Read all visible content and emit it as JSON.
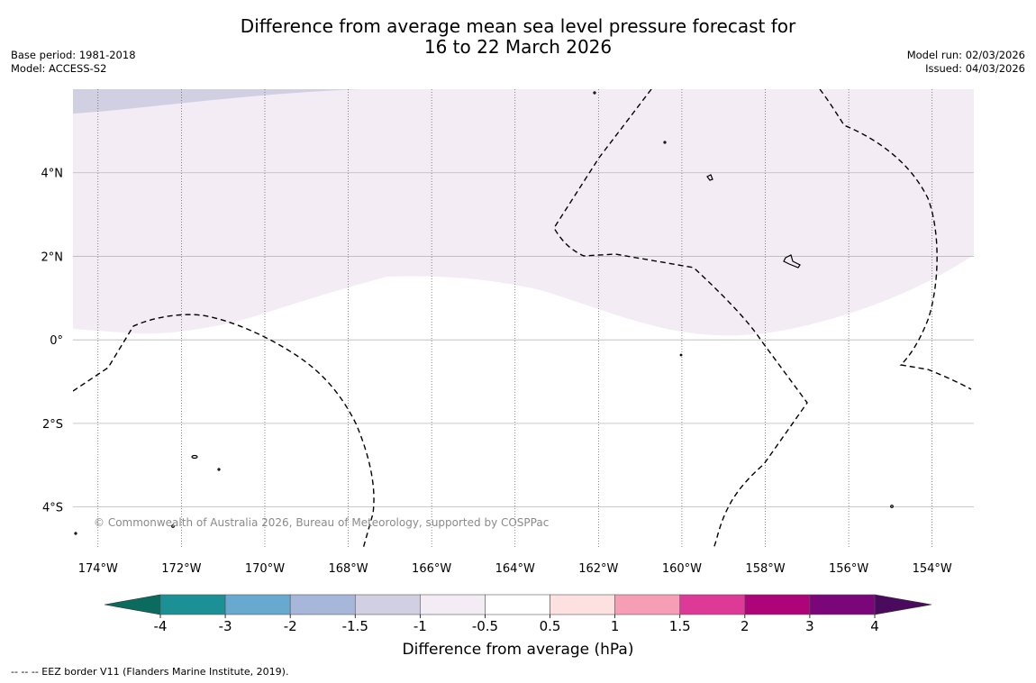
{
  "title": {
    "line1": "Difference from average mean sea level pressure forecast for",
    "line2": "16 to 22 March 2026"
  },
  "meta_left": {
    "base_period": "Base period: 1981-2018",
    "model": "Model: ACCESS-S2"
  },
  "meta_right": {
    "model_run": "Model run: 02/03/2026",
    "issued": "Issued: 04/03/2026"
  },
  "map": {
    "lon_range": [
      -174.6,
      -153.0
    ],
    "lat_range": [
      -5.0,
      6.0
    ],
    "lon_ticks": [
      {
        "value": -174,
        "label": "174°W"
      },
      {
        "value": -172,
        "label": "172°W"
      },
      {
        "value": -170,
        "label": "170°W"
      },
      {
        "value": -168,
        "label": "168°W"
      },
      {
        "value": -166,
        "label": "166°W"
      },
      {
        "value": -164,
        "label": "164°W"
      },
      {
        "value": -162,
        "label": "162°W"
      },
      {
        "value": -160,
        "label": "160°W"
      },
      {
        "value": -158,
        "label": "158°W"
      },
      {
        "value": -156,
        "label": "156°W"
      },
      {
        "value": -154,
        "label": "154°W"
      }
    ],
    "lat_ticks": [
      {
        "value": 4,
        "label": "4°N"
      },
      {
        "value": 2,
        "label": "2°N"
      },
      {
        "value": 0,
        "label": "0°"
      },
      {
        "value": -2,
        "label": "2°S"
      },
      {
        "value": -4,
        "label": "4°S"
      }
    ],
    "copyright": "© Commonwealth of Australia 2026, Bureau of Meteorology, supported by COSPPac",
    "shading_colors": {
      "band_minus_1_5_to_minus_1": "#d1d0e3",
      "band_minus_1_to_minus_0_5": "#f3ecf5"
    }
  },
  "colorbar": {
    "label": "Difference from average (hPa)",
    "boundaries": [
      "-4",
      "-3",
      "-2",
      "-1.5",
      "-1",
      "-0.5",
      "0.5",
      "1",
      "1.5",
      "2",
      "3",
      "4"
    ],
    "under_color": "#0b6b5e",
    "over_color": "#4a0a5e",
    "colors": [
      "#1b9195",
      "#67a9cf",
      "#a6b7d9",
      "#d1d0e3",
      "#f3ecf5",
      "#ffffff",
      "#fde0e0",
      "#f59eb5",
      "#dd3a97",
      "#ad0479",
      "#7a067a"
    ]
  },
  "footer": {
    "eez_note": "--  --  -- EEZ border V11 (Flanders Marine Institute, 2019)."
  }
}
